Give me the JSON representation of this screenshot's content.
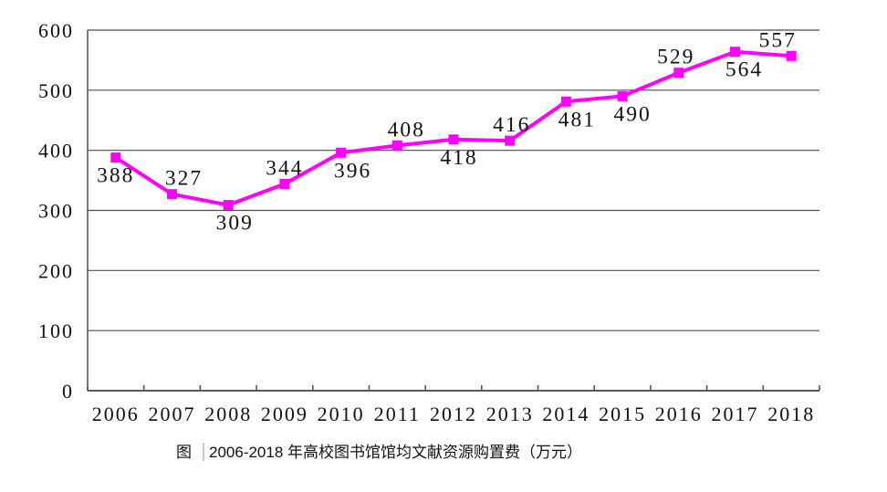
{
  "page": {
    "background": "#ffffff"
  },
  "chart_data": {
    "type": "line",
    "categories": [
      "2006",
      "2007",
      "2008",
      "2009",
      "2010",
      "2011",
      "2012",
      "2013",
      "2014",
      "2015",
      "2016",
      "2017",
      "2018"
    ],
    "series": [
      {
        "values": [
          388,
          327,
          309,
          344,
          396,
          408,
          418,
          416,
          481,
          490,
          529,
          564,
          557
        ],
        "color": "#ff00ff",
        "marker": "square",
        "label_pos": [
          "below",
          "above",
          "below",
          "above",
          "below",
          "above",
          "below",
          "above",
          "below",
          "below",
          "above",
          "below",
          "above"
        ],
        "label_dx": [
          0,
          13,
          7,
          0,
          13,
          10,
          6,
          2,
          12,
          11,
          -3,
          10,
          -15
        ]
      }
    ],
    "ylim": [
      0,
      600
    ],
    "ytick_interval": 100,
    "yticks": [
      "0",
      "100",
      "200",
      "300",
      "400",
      "500",
      "600"
    ],
    "grid": true,
    "legend": "none",
    "axis_color": "#595959",
    "grid_color": "#4d4d4d",
    "text_color": "#111111",
    "caption_prefix": "图",
    "caption_text": "2006-2018 年高校图书馆馆均文献资源购置费（万元）"
  }
}
